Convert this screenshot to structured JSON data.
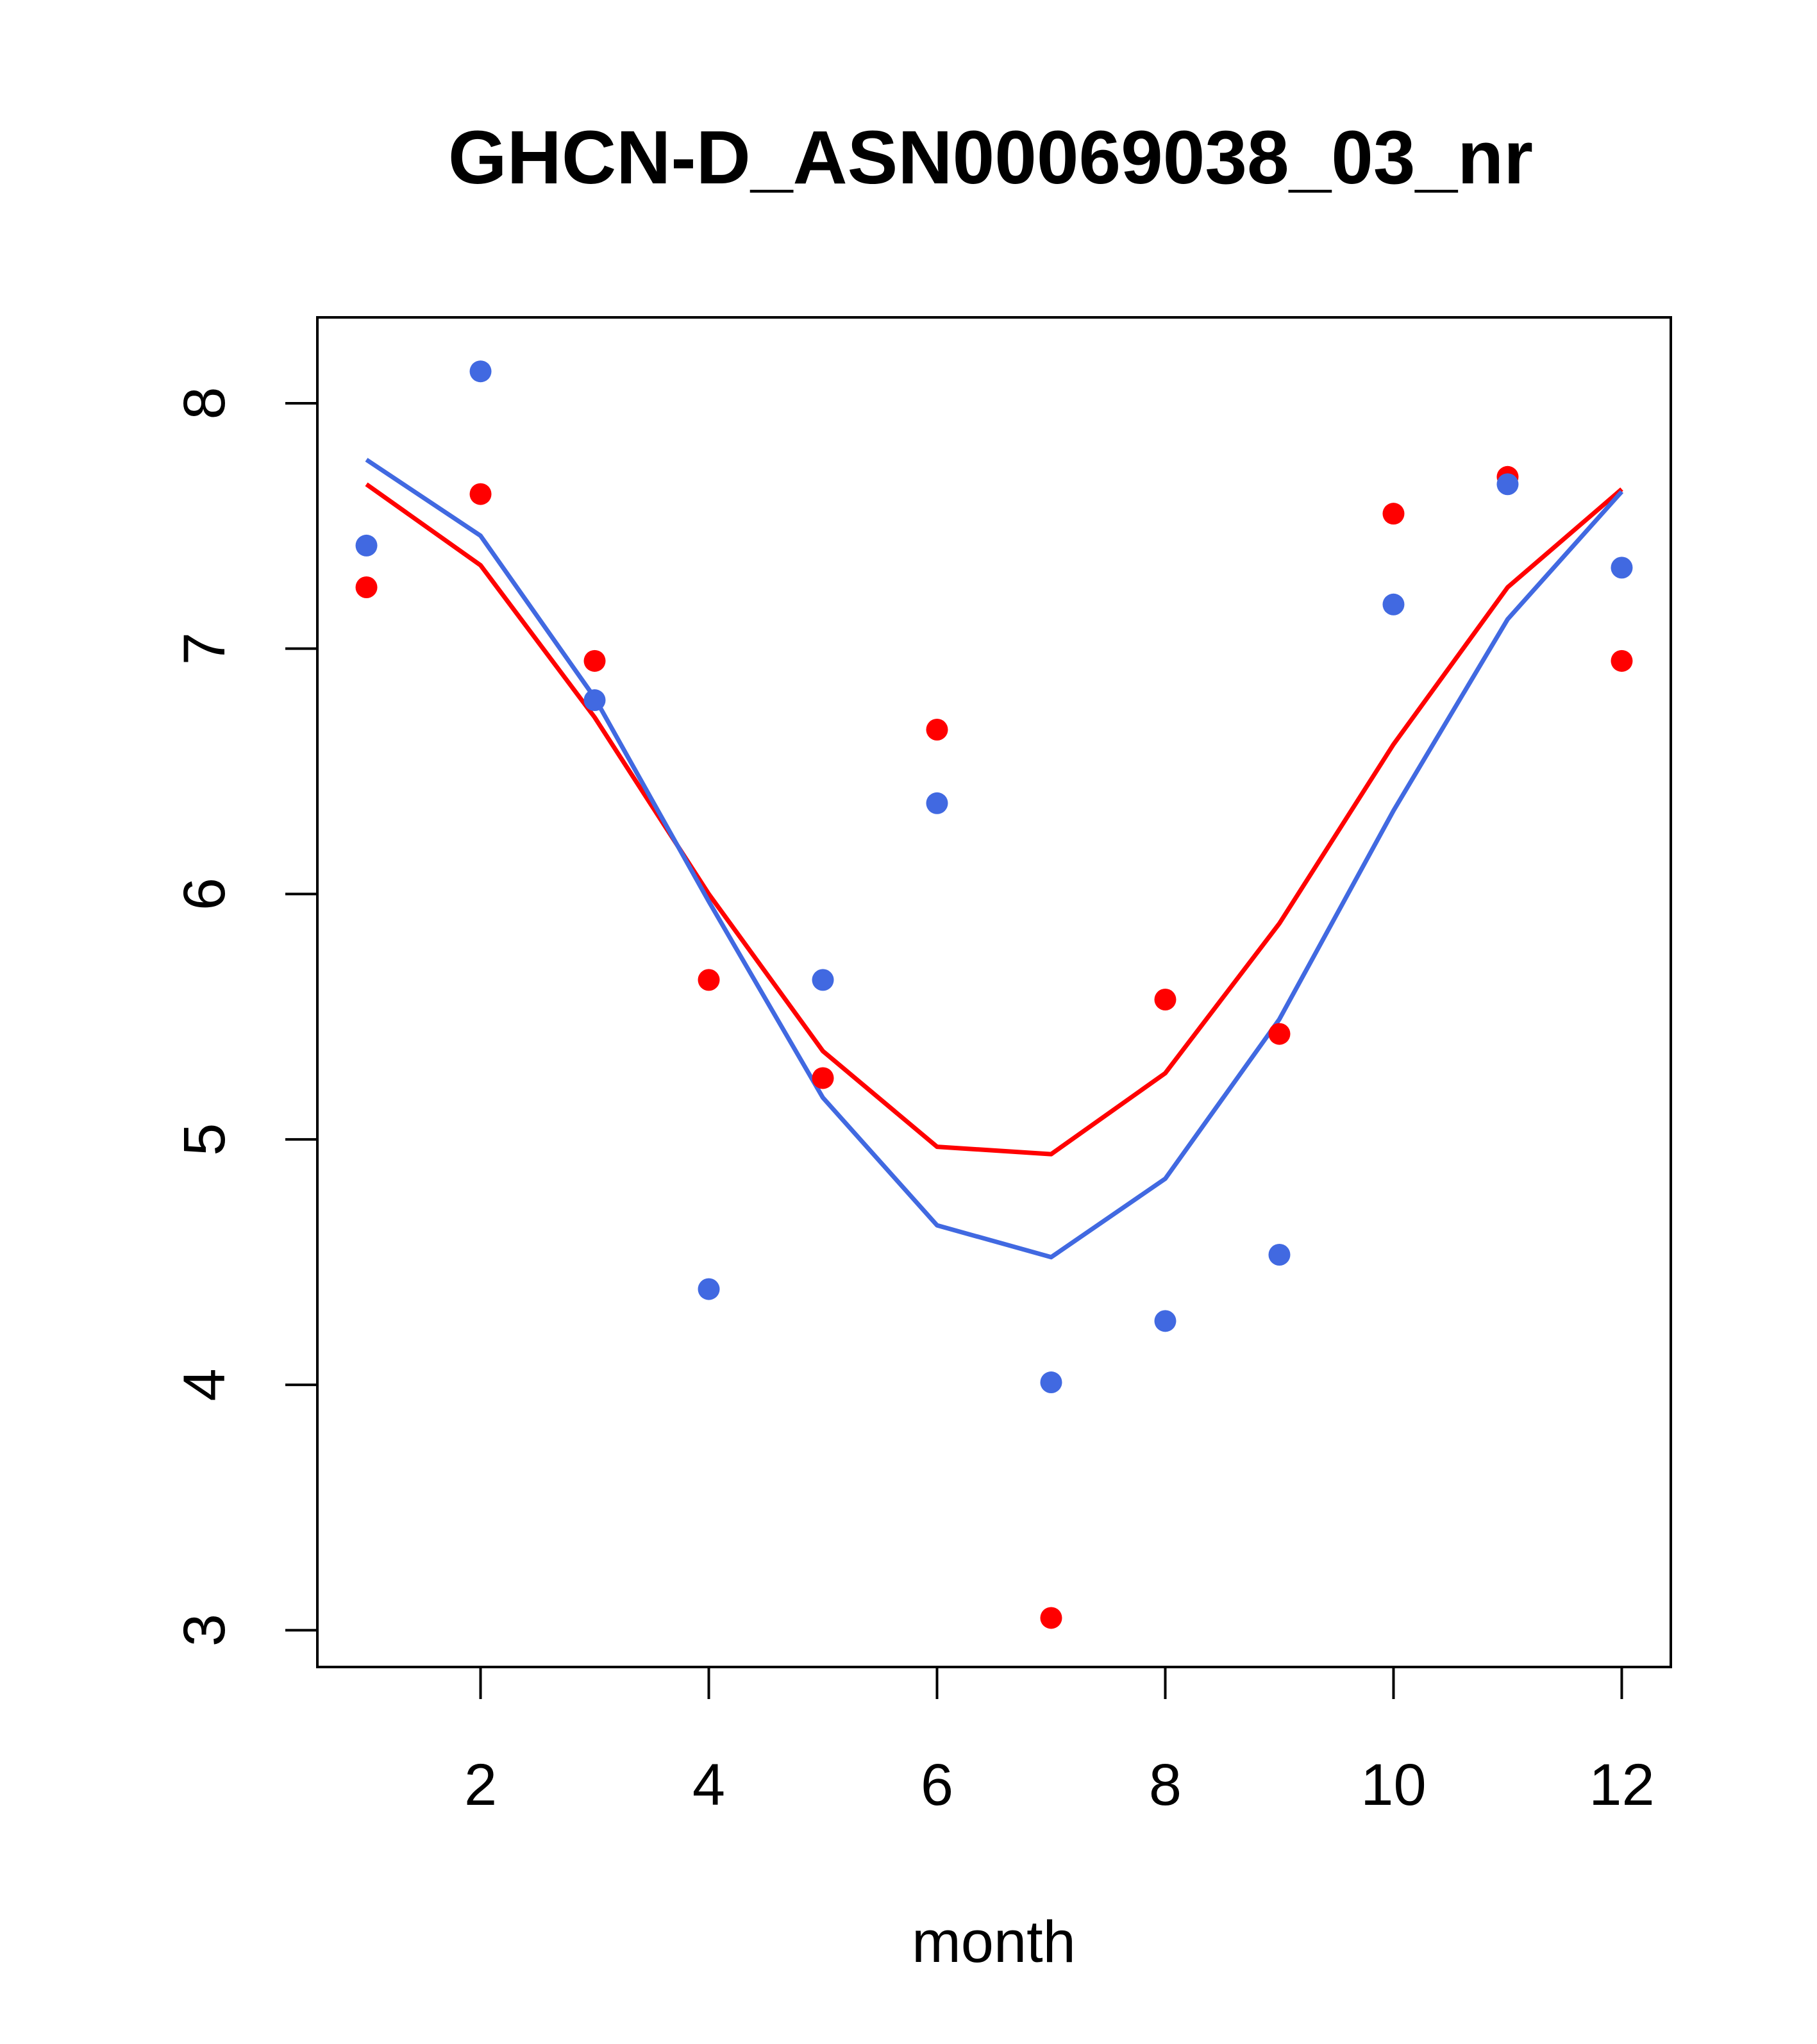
{
  "chart_data": {
    "type": "scatter",
    "title": "GHCN-D_ASN00069038_03_nr",
    "xlabel": "month",
    "ylabel": "",
    "xlim": [
      0.57,
      12.43
    ],
    "ylim": [
      2.85,
      8.35
    ],
    "x_ticks": [
      2,
      4,
      6,
      8,
      10,
      12
    ],
    "y_ticks": [
      3,
      4,
      5,
      6,
      7,
      8
    ],
    "grid": false,
    "legend": "none",
    "series": [
      {
        "kind": "points",
        "color": "#ff0000",
        "x": [
          1,
          2,
          3,
          4,
          5,
          6,
          7,
          8,
          9,
          10,
          11,
          12
        ],
        "y": [
          7.25,
          7.63,
          6.95,
          5.65,
          5.25,
          6.67,
          3.05,
          5.57,
          5.43,
          7.55,
          7.7,
          6.95
        ]
      },
      {
        "kind": "points",
        "color": "#4169e1",
        "x": [
          1,
          2,
          3,
          4,
          5,
          6,
          7,
          8,
          9,
          10,
          11,
          12
        ],
        "y": [
          7.42,
          8.13,
          6.79,
          4.39,
          5.65,
          6.37,
          4.01,
          4.26,
          4.53,
          7.18,
          7.67,
          7.33
        ]
      },
      {
        "kind": "line",
        "color": "#ff0000",
        "x": [
          1,
          2,
          3,
          4,
          5,
          6,
          7,
          8,
          9,
          10,
          11,
          12
        ],
        "y": [
          7.67,
          7.34,
          6.72,
          6.0,
          5.36,
          4.97,
          4.94,
          5.27,
          5.88,
          6.61,
          7.25,
          7.65
        ]
      },
      {
        "kind": "line",
        "color": "#4169e1",
        "x": [
          1,
          2,
          3,
          4,
          5,
          6,
          7,
          8,
          9,
          10,
          11,
          12
        ],
        "y": [
          7.77,
          7.46,
          6.8,
          5.97,
          5.17,
          4.65,
          4.52,
          4.84,
          5.49,
          6.34,
          7.12,
          7.64
        ]
      }
    ]
  }
}
